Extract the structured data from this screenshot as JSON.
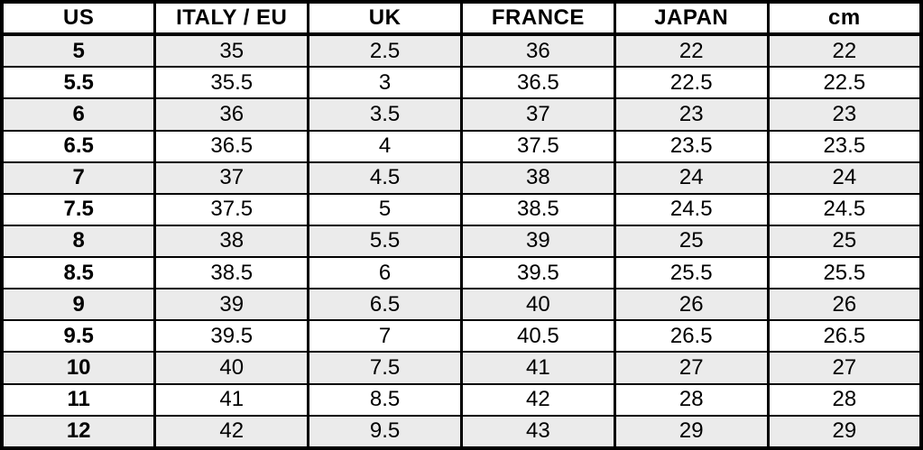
{
  "table": {
    "columns": [
      "US",
      "ITALY / EU",
      "UK",
      "FRANCE",
      "JAPAN",
      "cm"
    ],
    "rows": [
      [
        "5",
        "35",
        "2.5",
        "36",
        "22",
        "22"
      ],
      [
        "5.5",
        "35.5",
        "3",
        "36.5",
        "22.5",
        "22.5"
      ],
      [
        "6",
        "36",
        "3.5",
        "37",
        "23",
        "23"
      ],
      [
        "6.5",
        "36.5",
        "4",
        "37.5",
        "23.5",
        "23.5"
      ],
      [
        "7",
        "37",
        "4.5",
        "38",
        "24",
        "24"
      ],
      [
        "7.5",
        "37.5",
        "5",
        "38.5",
        "24.5",
        "24.5"
      ],
      [
        "8",
        "38",
        "5.5",
        "39",
        "25",
        "25"
      ],
      [
        "8.5",
        "38.5",
        "6",
        "39.5",
        "25.5",
        "25.5"
      ],
      [
        "9",
        "39",
        "6.5",
        "40",
        "26",
        "26"
      ],
      [
        "9.5",
        "39.5",
        "7",
        "40.5",
        "26.5",
        "26.5"
      ],
      [
        "10",
        "40",
        "7.5",
        "41",
        "27",
        "27"
      ],
      [
        "11",
        "41",
        "8.5",
        "42",
        "28",
        "28"
      ],
      [
        "12",
        "42",
        "9.5",
        "43",
        "29",
        "29"
      ]
    ]
  },
  "chart_data": {
    "type": "table",
    "columns": [
      "US",
      "ITALY / EU",
      "UK",
      "FRANCE",
      "JAPAN",
      "cm"
    ],
    "rows": [
      [
        "5",
        "35",
        "2.5",
        "36",
        "22",
        "22"
      ],
      [
        "5.5",
        "35.5",
        "3",
        "36.5",
        "22.5",
        "22.5"
      ],
      [
        "6",
        "36",
        "3.5",
        "37",
        "23",
        "23"
      ],
      [
        "6.5",
        "36.5",
        "4",
        "37.5",
        "23.5",
        "23.5"
      ],
      [
        "7",
        "37",
        "4.5",
        "38",
        "24",
        "24"
      ],
      [
        "7.5",
        "37.5",
        "5",
        "38.5",
        "24.5",
        "24.5"
      ],
      [
        "8",
        "38",
        "5.5",
        "39",
        "25",
        "25"
      ],
      [
        "8.5",
        "38.5",
        "6",
        "39.5",
        "25.5",
        "25.5"
      ],
      [
        "9",
        "39",
        "6.5",
        "40",
        "26",
        "26"
      ],
      [
        "9.5",
        "39.5",
        "7",
        "40.5",
        "26.5",
        "26.5"
      ],
      [
        "10",
        "40",
        "7.5",
        "41",
        "27",
        "27"
      ],
      [
        "11",
        "41",
        "8.5",
        "42",
        "28",
        "28"
      ],
      [
        "12",
        "42",
        "9.5",
        "43",
        "29",
        "29"
      ]
    ],
    "layout": {
      "grid": true,
      "header_background": "#ffffff",
      "alt_row_background": "#ebebeb",
      "border_color": "#000000",
      "text_color": "#000000"
    }
  },
  "colors": {
    "row_alt": "#ebebeb",
    "row": "#ffffff",
    "border": "#000000",
    "text": "#000000"
  }
}
